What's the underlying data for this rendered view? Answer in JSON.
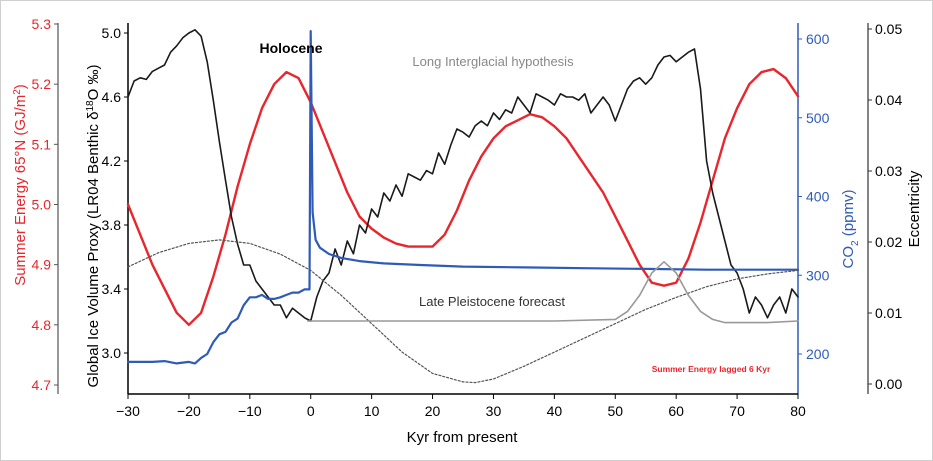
{
  "chart_data": {
    "type": "line",
    "title": "",
    "xlabel": "Kyr from present",
    "x_ticks": [
      "-30",
      "-20",
      "-10",
      "0",
      "10",
      "20",
      "30",
      "40",
      "50",
      "60",
      "70",
      "80"
    ],
    "xlim": [
      -30,
      80
    ],
    "axes": {
      "energy": {
        "label": "Summer Energy 65°N (GJ/m²)",
        "label_parts": [
          "Summer Energy 65°N (GJ/m",
          "2",
          ")"
        ],
        "ticks": [
          "4.7",
          "4.8",
          "4.9",
          "5.0",
          "5.1",
          "5.2",
          "5.3"
        ],
        "range": [
          4.7,
          5.3
        ],
        "color": "#e8262c"
      },
      "ice": {
        "label": "Global Ice Volume Proxy (LR04 Benthic δ¹⁸O ‰)",
        "label_parts": [
          "Global Ice Volume Proxy (LR04 Benthic δ",
          "18",
          "O ‰)"
        ],
        "ticks": [
          "3.0",
          "3.4",
          "3.8",
          "4.2",
          "4.6",
          "5.0"
        ],
        "range": [
          2.95,
          5.0
        ],
        "inverted": true,
        "color": "#000000"
      },
      "co2": {
        "label": "CO₂ (ppmv)",
        "label_parts": [
          "CO",
          "2",
          " (ppmv)"
        ],
        "ticks": [
          "200",
          "300",
          "400",
          "500",
          "600"
        ],
        "range": [
          175,
          615
        ],
        "color": "#2f5bb7"
      },
      "eccentricity": {
        "label": "Eccentricity",
        "ticks": [
          "0.00",
          "0.01",
          "0.02",
          "0.03",
          "0.04",
          "0.05"
        ],
        "range": [
          0.0,
          0.0515
        ],
        "color": "#000000"
      }
    },
    "annotations": {
      "holocene": "Holocene",
      "long_interglacial": "Long Interglacial hypothesis",
      "late_pleistocene": "Late Pleistocene forecast",
      "lag_note": "Summer Energy lagged 6 Kyr"
    },
    "series": [
      {
        "axis": "energy",
        "color": "#e8262c",
        "style": "solid",
        "x": [
          -30,
          -28,
          -26,
          -24,
          -22,
          -20,
          -18,
          -16,
          -14,
          -12,
          -10,
          -8,
          -6,
          -4,
          -2,
          0,
          2,
          4,
          6,
          8,
          10,
          12,
          14,
          16,
          18,
          20,
          22,
          24,
          26,
          28,
          30,
          32,
          34,
          36,
          38,
          40,
          42,
          44,
          46,
          48,
          50,
          52,
          54,
          56,
          58,
          60,
          62,
          64,
          66,
          68,
          70,
          72,
          74,
          76,
          78,
          80
        ],
        "values": [
          5.0,
          4.95,
          4.9,
          4.86,
          4.82,
          4.8,
          4.82,
          4.88,
          4.95,
          5.03,
          5.1,
          5.16,
          5.2,
          5.22,
          5.21,
          5.17,
          5.12,
          5.07,
          5.02,
          4.98,
          4.96,
          4.945,
          4.935,
          4.93,
          4.93,
          4.93,
          4.95,
          4.99,
          5.04,
          5.08,
          5.11,
          5.13,
          5.14,
          5.15,
          5.145,
          5.13,
          5.11,
          5.08,
          5.05,
          5.02,
          4.98,
          4.94,
          4.9,
          4.87,
          4.865,
          4.87,
          4.91,
          4.97,
          5.04,
          5.11,
          5.16,
          5.2,
          5.22,
          5.225,
          5.21,
          5.18
        ]
      },
      {
        "axis": "ice",
        "color": "#1a1a1a",
        "style": "solid",
        "x": [
          -30,
          -29,
          -28,
          -27,
          -26,
          -25,
          -24,
          -23,
          -22,
          -21,
          -20,
          -19,
          -18,
          -17,
          -16,
          -15,
          -14,
          -13,
          -12,
          -11,
          -10,
          -9,
          -8,
          -7,
          -6,
          -5,
          -4,
          -3,
          -2,
          -1,
          0,
          1,
          2,
          3,
          4,
          5,
          6,
          7,
          8,
          9,
          10,
          11,
          12,
          13,
          14,
          15,
          16,
          17,
          18,
          19,
          20,
          21,
          22,
          23,
          24,
          25,
          26,
          27,
          28,
          29,
          30,
          31,
          32,
          33,
          34,
          35,
          36,
          37,
          38,
          39,
          40,
          41,
          42,
          43,
          44,
          45,
          46,
          47,
          48,
          49,
          50,
          51,
          52,
          53,
          54,
          55,
          56,
          57,
          58,
          59,
          60,
          61,
          62,
          63,
          64,
          65,
          66,
          67,
          68,
          69,
          70,
          71,
          72,
          73,
          74,
          75,
          76,
          77,
          78,
          79,
          80
        ],
        "values": [
          4.6,
          4.7,
          4.72,
          4.71,
          4.76,
          4.78,
          4.8,
          4.88,
          4.92,
          4.97,
          5.0,
          5.02,
          4.98,
          4.82,
          4.58,
          4.32,
          4.08,
          3.85,
          3.68,
          3.55,
          3.55,
          3.45,
          3.4,
          3.35,
          3.3,
          3.3,
          3.22,
          3.28,
          3.25,
          3.22,
          3.2,
          3.35,
          3.45,
          3.5,
          3.65,
          3.55,
          3.7,
          3.62,
          3.8,
          3.75,
          3.9,
          3.85,
          4.0,
          3.95,
          4.05,
          3.98,
          4.12,
          4.1,
          4.08,
          4.14,
          4.12,
          4.25,
          4.18,
          4.3,
          4.4,
          4.38,
          4.35,
          4.42,
          4.45,
          4.42,
          4.5,
          4.46,
          4.52,
          4.5,
          4.6,
          4.55,
          4.5,
          4.62,
          4.6,
          4.58,
          4.55,
          4.62,
          4.6,
          4.6,
          4.58,
          4.62,
          4.5,
          4.55,
          4.6,
          4.55,
          4.45,
          4.55,
          4.65,
          4.7,
          4.72,
          4.68,
          4.72,
          4.8,
          4.85,
          4.86,
          4.82,
          4.85,
          4.88,
          4.9,
          4.65,
          4.2,
          4.0,
          3.85,
          3.7,
          3.55,
          3.5,
          3.4,
          3.25,
          3.35,
          3.3,
          3.22,
          3.3,
          3.35,
          3.25,
          3.4,
          3.35
        ]
      },
      {
        "axis": "co2",
        "color": "#2f5bb7",
        "style": "solid",
        "x": [
          -30,
          -28,
          -26,
          -24,
          -22,
          -20,
          -19,
          -18,
          -17,
          -16,
          -15,
          -14,
          -13,
          -12,
          -11,
          -10,
          -9,
          -8,
          -7,
          -6,
          -5,
          -4,
          -3,
          -2,
          -1,
          -0.2,
          0,
          0.3,
          0.8,
          1.5,
          3,
          5,
          8,
          12,
          18,
          25,
          35,
          45,
          55,
          65,
          75,
          80
        ],
        "values": [
          190,
          190,
          190,
          191,
          188,
          190,
          188,
          195,
          200,
          215,
          225,
          228,
          240,
          245,
          262,
          272,
          272,
          275,
          270,
          270,
          272,
          275,
          278,
          278,
          282,
          282,
          610,
          380,
          345,
          335,
          327,
          322,
          318,
          315,
          313,
          311,
          310,
          309,
          308,
          307,
          307,
          307
        ]
      },
      {
        "axis": "eccentricity",
        "color": "#555555",
        "style": "dotted",
        "x": [
          -30,
          -25,
          -20,
          -15,
          -10,
          -5,
          0,
          5,
          10,
          15,
          20,
          25,
          27,
          30,
          35,
          40,
          45,
          50,
          55,
          60,
          65,
          70,
          75,
          80
        ],
        "values": [
          0.0165,
          0.0185,
          0.0198,
          0.0203,
          0.0198,
          0.0183,
          0.016,
          0.0125,
          0.0085,
          0.0045,
          0.0015,
          0.0003,
          0.0002,
          0.0007,
          0.0025,
          0.0045,
          0.0065,
          0.0085,
          0.0105,
          0.0122,
          0.0137,
          0.0148,
          0.0155,
          0.016
        ]
      },
      {
        "axis": "ice",
        "color": "#999999",
        "style": "solid",
        "x": [
          -0.5,
          0,
          20,
          40,
          50,
          52,
          54,
          56,
          58,
          60,
          62,
          64,
          66,
          68,
          75,
          80
        ],
        "values": [
          3.2,
          3.2,
          3.2,
          3.2,
          3.21,
          3.26,
          3.36,
          3.5,
          3.57,
          3.5,
          3.36,
          3.26,
          3.21,
          3.19,
          3.19,
          3.2
        ]
      }
    ]
  }
}
